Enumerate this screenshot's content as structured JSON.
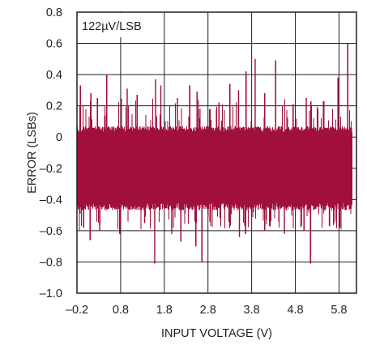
{
  "chart_data": {
    "type": "line",
    "title": "",
    "annotation": "122µV/LSB",
    "xlabel": "INPUT VOLTAGE (V)",
    "ylabel": "ERROR (LSBs)",
    "xlim": [
      -0.2,
      6.2
    ],
    "ylim": [
      -1.0,
      0.8
    ],
    "x_ticks": [
      -0.2,
      0.8,
      1.8,
      2.8,
      3.8,
      4.8,
      5.8
    ],
    "x_tick_labels": [
      "–0.2",
      "0.8",
      "1.8",
      "2.8",
      "3.8",
      "4.8",
      "5.8"
    ],
    "y_ticks": [
      -1.0,
      -0.8,
      -0.6,
      -0.4,
      -0.2,
      0,
      0.2,
      0.4,
      0.6,
      0.8
    ],
    "y_tick_labels": [
      "–1.0",
      "–0.8",
      "–0.6",
      "–0.4",
      "–0.2",
      "0",
      "0.2",
      "0.4",
      "0.6",
      "0.8"
    ],
    "grid": true,
    "series_color": "#a0103a",
    "band": {
      "x_start": -0.2,
      "x_end": 6.1,
      "typical_max": 0.05,
      "typical_min": -0.43
    },
    "peaks": [
      {
        "x": -0.12,
        "y": 0.33
      },
      {
        "x": 0.12,
        "y": 0.28
      },
      {
        "x": 0.27,
        "y": 0.25
      },
      {
        "x": 0.48,
        "y": 0.4
      },
      {
        "x": 0.95,
        "y": 0.31
      },
      {
        "x": 1.18,
        "y": 0.27
      },
      {
        "x": 1.6,
        "y": 0.37
      },
      {
        "x": 1.72,
        "y": 0.33
      },
      {
        "x": 2.1,
        "y": 0.25
      },
      {
        "x": 2.38,
        "y": 0.33
      },
      {
        "x": 2.55,
        "y": 0.29
      },
      {
        "x": 3.05,
        "y": 0.22
      },
      {
        "x": 3.3,
        "y": 0.34
      },
      {
        "x": 3.5,
        "y": 0.3
      },
      {
        "x": 3.67,
        "y": 0.42
      },
      {
        "x": 3.88,
        "y": 0.5
      },
      {
        "x": 4.1,
        "y": 0.28
      },
      {
        "x": 4.35,
        "y": 0.49
      },
      {
        "x": 4.75,
        "y": 0.21
      },
      {
        "x": 5.05,
        "y": 0.25
      },
      {
        "x": 5.45,
        "y": 0.23
      },
      {
        "x": 5.78,
        "y": 0.38
      },
      {
        "x": 6.0,
        "y": 0.6
      }
    ],
    "troughs": [
      {
        "x": -0.05,
        "y": -0.58
      },
      {
        "x": 0.1,
        "y": -0.66
      },
      {
        "x": 0.32,
        "y": -0.6
      },
      {
        "x": 0.78,
        "y": -0.62
      },
      {
        "x": 1.35,
        "y": -0.55
      },
      {
        "x": 1.58,
        "y": -0.81
      },
      {
        "x": 1.97,
        "y": -0.62
      },
      {
        "x": 2.18,
        "y": -0.67
      },
      {
        "x": 2.52,
        "y": -0.7
      },
      {
        "x": 2.66,
        "y": -0.8
      },
      {
        "x": 3.08,
        "y": -0.52
      },
      {
        "x": 3.52,
        "y": -0.64
      },
      {
        "x": 3.66,
        "y": -0.62
      },
      {
        "x": 4.1,
        "y": -0.6
      },
      {
        "x": 4.55,
        "y": -0.62
      },
      {
        "x": 5.0,
        "y": -0.6
      },
      {
        "x": 5.15,
        "y": -0.81
      },
      {
        "x": 5.58,
        "y": -0.57
      },
      {
        "x": 5.82,
        "y": -0.58
      }
    ]
  }
}
